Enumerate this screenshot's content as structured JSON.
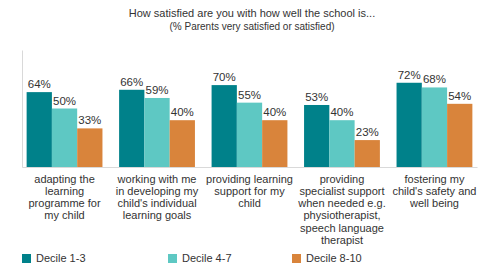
{
  "chart_data": {
    "type": "bar",
    "title": "How satisfied are you with how well the school is...",
    "subtitle": "(% Parents very satisfied or satisfied)",
    "categories": [
      "adapting the learning programme for my child",
      "working with me in developing my child's individual learning goals",
      "providing learning support for my child",
      "providing specialist support when needed e.g. physiotherapist, speech language therapist",
      "fostering my child's safety and well being"
    ],
    "series": [
      {
        "name": "Decile 1-3",
        "color": "#00818a",
        "values": [
          64,
          66,
          70,
          53,
          72
        ],
        "value_labels": [
          "64%",
          "66%",
          "70%",
          "53%",
          "72%"
        ]
      },
      {
        "name": "Decile 4-7",
        "color": "#5ec8c3",
        "values": [
          50,
          59,
          55,
          40,
          68
        ],
        "value_labels": [
          "50%",
          "59%",
          "55%",
          "40%",
          "68%"
        ]
      },
      {
        "name": "Decile 8-10",
        "color": "#d9843b",
        "values": [
          33,
          40,
          40,
          23,
          54
        ],
        "value_labels": [
          "33%",
          "40%",
          "40%",
          "23%",
          "54%"
        ]
      }
    ],
    "ylim": [
      0,
      100
    ],
    "data_labels": true,
    "tick_labels": "x",
    "grid": false,
    "legend": "bottom"
  }
}
